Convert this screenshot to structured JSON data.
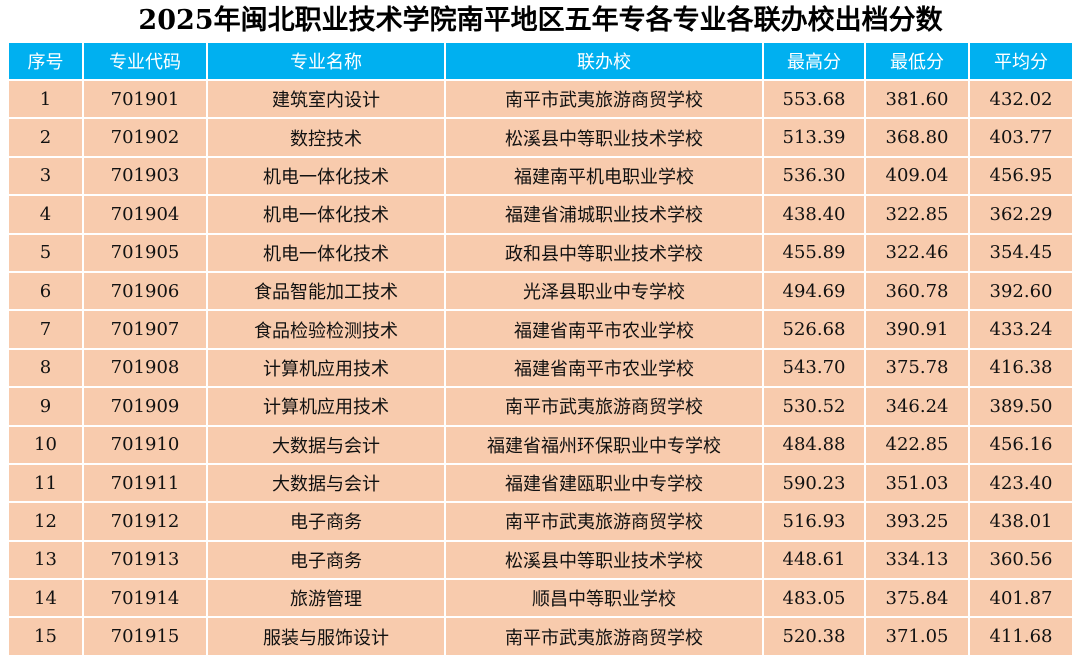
{
  "title": "2025年闽北职业技术学院南平地区五年专各专业各联办校出档分数",
  "colors": {
    "header_bg": "#00b0f0",
    "row_bg": "#f8cbad"
  },
  "table": {
    "headers": [
      "序号",
      "专业代码",
      "专业名称",
      "联办校",
      "最高分",
      "最低分",
      "平均分"
    ],
    "rows": [
      [
        "1",
        "701901",
        "建筑室内设计",
        "南平市武夷旅游商贸学校",
        "553.68",
        "381.60",
        "432.02"
      ],
      [
        "2",
        "701902",
        "数控技术",
        "松溪县中等职业技术学校",
        "513.39",
        "368.80",
        "403.77"
      ],
      [
        "3",
        "701903",
        "机电一体化技术",
        "福建南平机电职业学校",
        "536.30",
        "409.04",
        "456.95"
      ],
      [
        "4",
        "701904",
        "机电一体化技术",
        "福建省浦城职业技术学校",
        "438.40",
        "322.85",
        "362.29"
      ],
      [
        "5",
        "701905",
        "机电一体化技术",
        "政和县中等职业技术学校",
        "455.89",
        "322.46",
        "354.45"
      ],
      [
        "6",
        "701906",
        "食品智能加工技术",
        "光泽县职业中专学校",
        "494.69",
        "360.78",
        "392.60"
      ],
      [
        "7",
        "701907",
        "食品检验检测技术",
        "福建省南平市农业学校",
        "526.68",
        "390.91",
        "433.24"
      ],
      [
        "8",
        "701908",
        "计算机应用技术",
        "福建省南平市农业学校",
        "543.70",
        "375.78",
        "416.38"
      ],
      [
        "9",
        "701909",
        "计算机应用技术",
        "南平市武夷旅游商贸学校",
        "530.52",
        "346.24",
        "389.50"
      ],
      [
        "10",
        "701910",
        "大数据与会计",
        "福建省福州环保职业中专学校",
        "484.88",
        "422.85",
        "456.16"
      ],
      [
        "11",
        "701911",
        "大数据与会计",
        "福建省建瓯职业中专学校",
        "590.23",
        "351.03",
        "423.40"
      ],
      [
        "12",
        "701912",
        "电子商务",
        "南平市武夷旅游商贸学校",
        "516.93",
        "393.25",
        "438.01"
      ],
      [
        "13",
        "701913",
        "电子商务",
        "松溪县中等职业技术学校",
        "448.61",
        "334.13",
        "360.56"
      ],
      [
        "14",
        "701914",
        "旅游管理",
        "顺昌中等职业学校",
        "483.05",
        "375.84",
        "401.87"
      ],
      [
        "15",
        "701915",
        "服装与服饰设计",
        "南平市武夷旅游商贸学校",
        "520.38",
        "371.05",
        "411.68"
      ]
    ]
  }
}
